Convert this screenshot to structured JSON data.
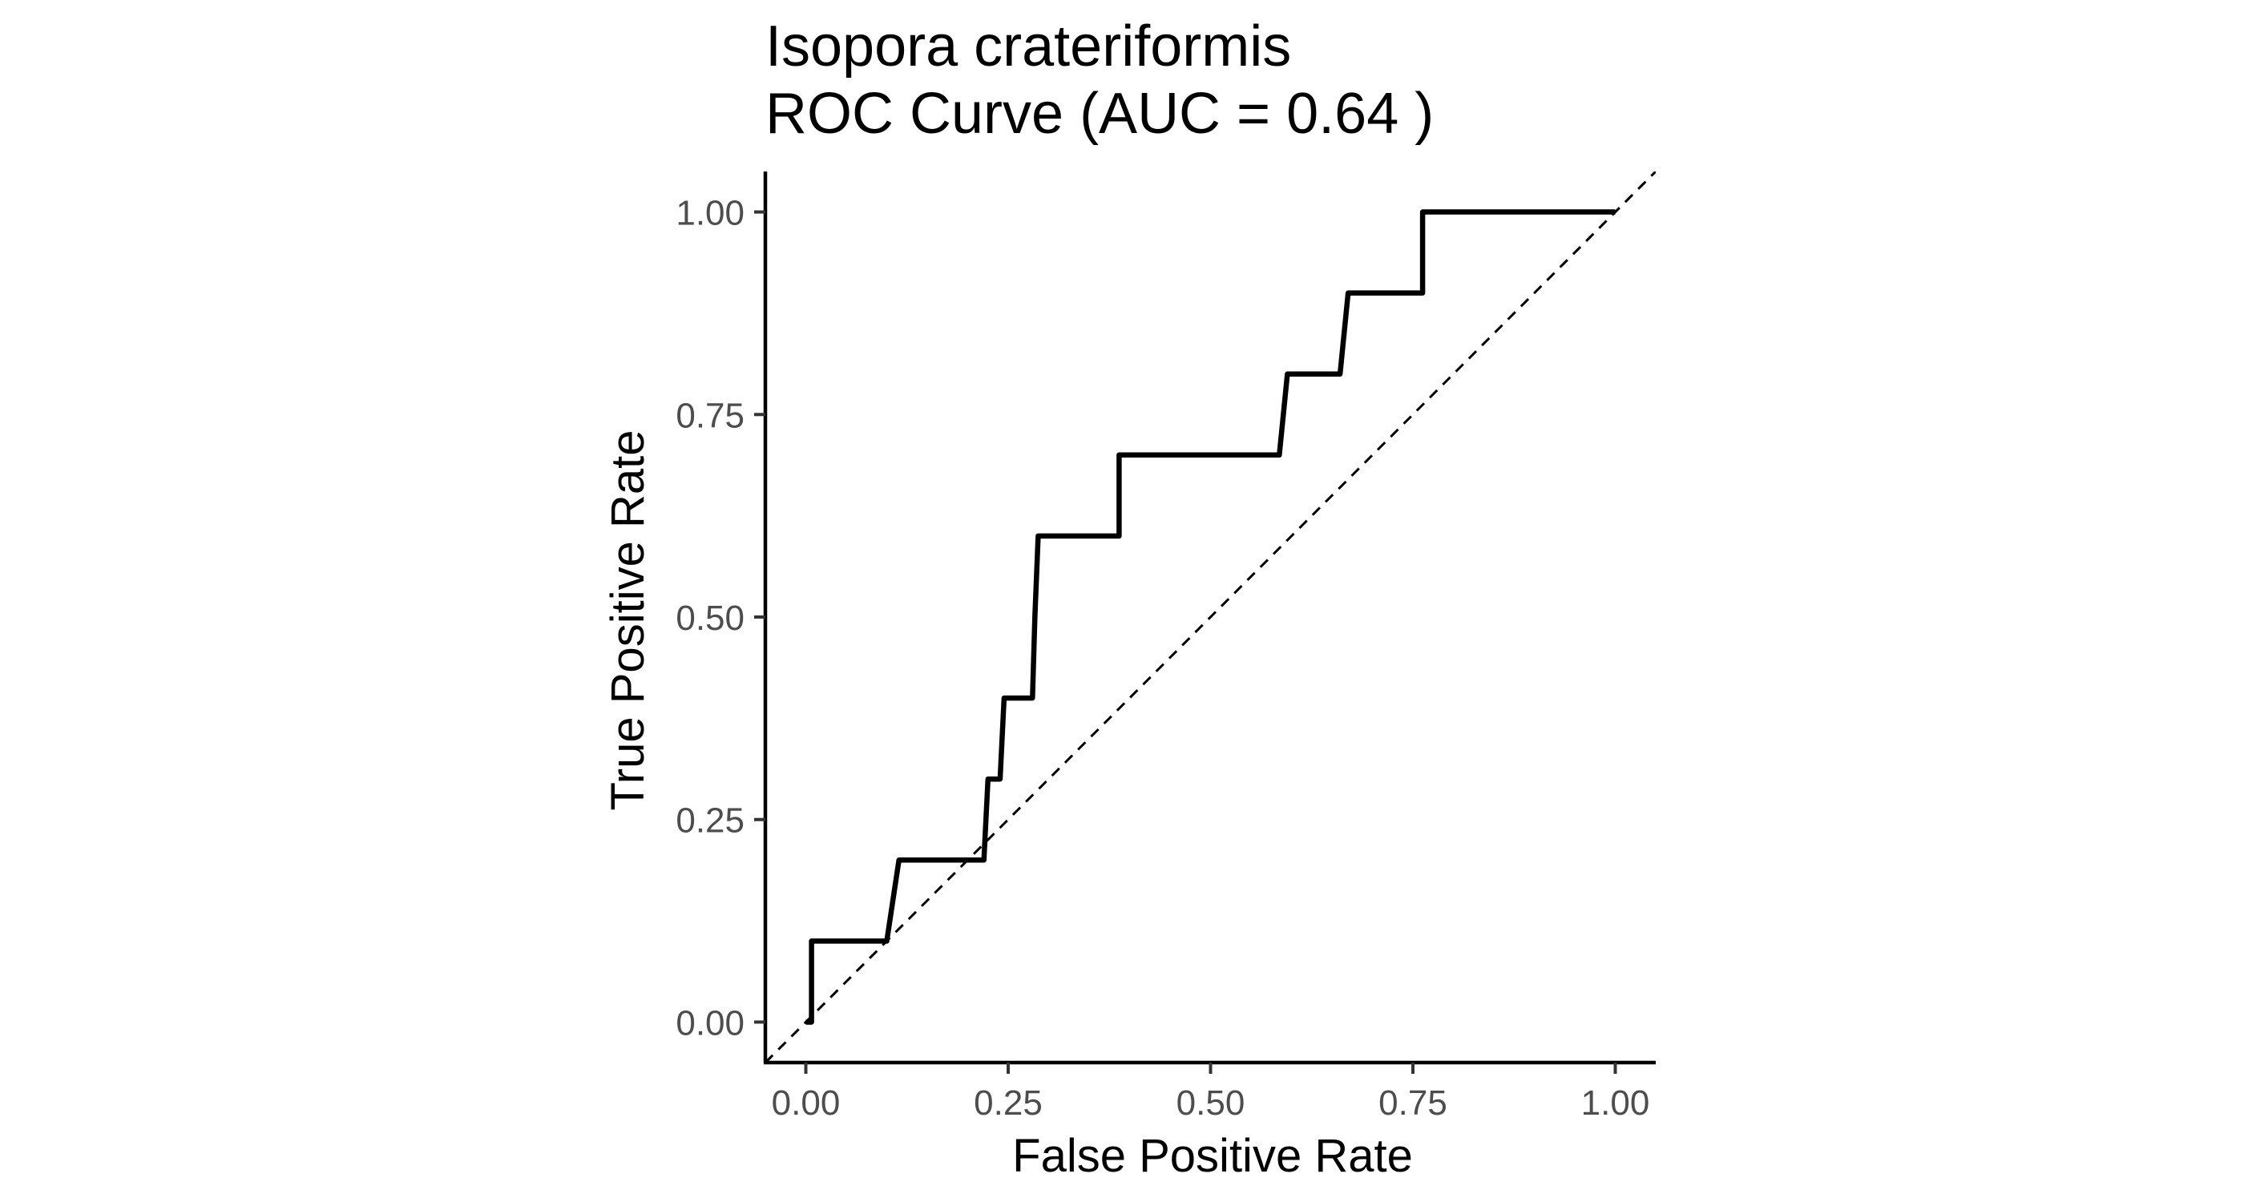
{
  "chart_data": {
    "type": "line",
    "title_line1": "Isopora crateriformis",
    "title_line2": "ROC Curve (AUC = 0.64 )",
    "xlabel": "False Positive Rate",
    "ylabel": "True Positive Rate",
    "xlim": [
      -0.05,
      1.05
    ],
    "ylim": [
      -0.05,
      1.05
    ],
    "x_ticks": [
      {
        "value": 0.0,
        "label": "0.00"
      },
      {
        "value": 0.25,
        "label": "0.25"
      },
      {
        "value": 0.5,
        "label": "0.50"
      },
      {
        "value": 0.75,
        "label": "0.75"
      },
      {
        "value": 1.0,
        "label": "1.00"
      }
    ],
    "y_ticks": [
      {
        "value": 0.0,
        "label": "0.00"
      },
      {
        "value": 0.25,
        "label": "0.25"
      },
      {
        "value": 0.5,
        "label": "0.50"
      },
      {
        "value": 0.75,
        "label": "0.75"
      },
      {
        "value": 1.0,
        "label": "1.00"
      }
    ],
    "grid": false,
    "series": [
      {
        "style": "solid",
        "color": "#000000",
        "x": [
          0.0,
          0.007,
          0.007,
          0.1,
          0.115,
          0.21,
          0.22,
          0.225,
          0.225,
          0.24,
          0.245,
          0.28,
          0.283,
          0.287,
          0.387,
          0.387,
          0.585,
          0.595,
          0.66,
          0.67,
          0.762,
          0.762,
          1.0
        ],
        "y": [
          0.0,
          0.0,
          0.1,
          0.1,
          0.2,
          0.2,
          0.2,
          0.3,
          0.3,
          0.3,
          0.4,
          0.4,
          0.5,
          0.6,
          0.6,
          0.7,
          0.7,
          0.8,
          0.8,
          0.9,
          0.9,
          1.0,
          1.0
        ]
      },
      {
        "style": "dashed",
        "color": "#000000",
        "x": [
          -0.05,
          1.05
        ],
        "y": [
          -0.05,
          1.05
        ]
      }
    ]
  }
}
